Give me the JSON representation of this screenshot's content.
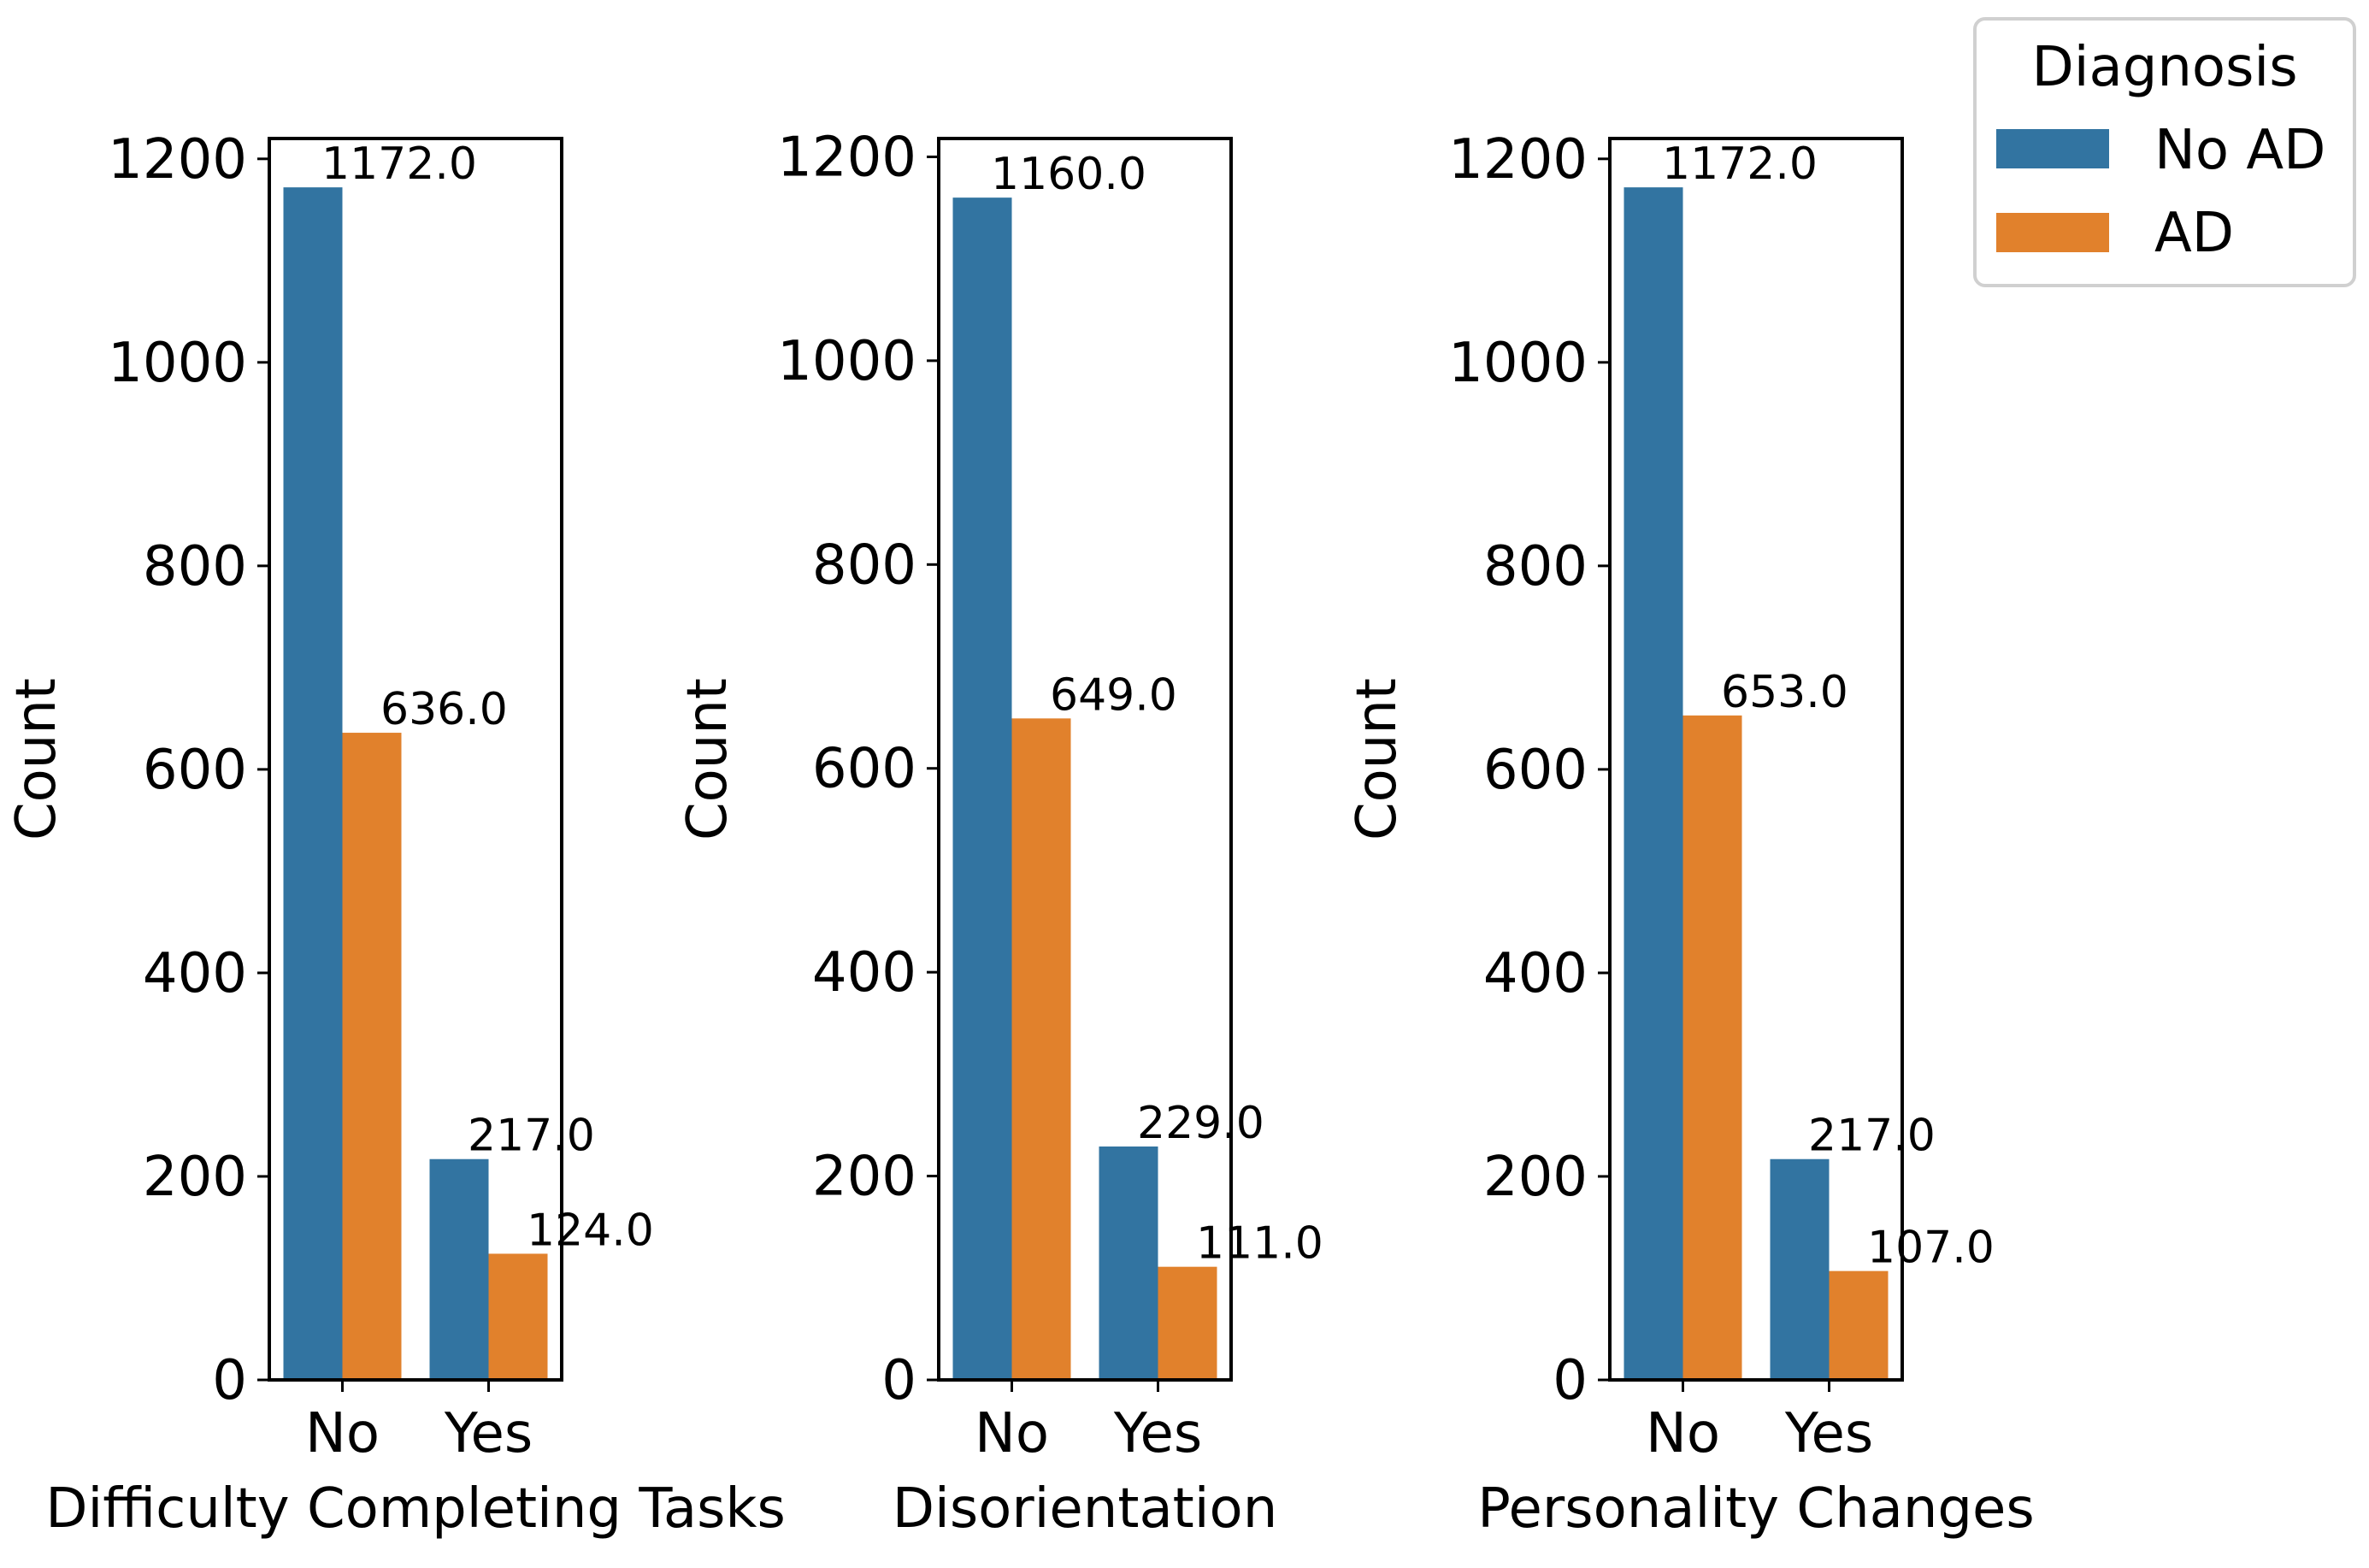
{
  "chart_data": [
    {
      "type": "bar",
      "xlabel": "Difficulty Completing Tasks",
      "ylabel": "Count",
      "categories": [
        "No",
        "Yes"
      ],
      "ylim": [
        0,
        1220
      ],
      "yticks": [
        0,
        200,
        400,
        600,
        800,
        1000,
        1200
      ],
      "series": [
        {
          "name": "No AD",
          "values": [
            1172,
            217
          ],
          "labels": [
            "1172.0",
            "217.0"
          ]
        },
        {
          "name": "AD",
          "values": [
            636,
            124
          ],
          "labels": [
            "636.0",
            "124.0"
          ]
        }
      ]
    },
    {
      "type": "bar",
      "xlabel": "Disorientation",
      "ylabel": "Count",
      "categories": [
        "No",
        "Yes"
      ],
      "ylim": [
        0,
        1218
      ],
      "yticks": [
        0,
        200,
        400,
        600,
        800,
        1000,
        1200
      ],
      "series": [
        {
          "name": "No AD",
          "values": [
            1160,
            229
          ],
          "labels": [
            "1160.0",
            "229.0"
          ]
        },
        {
          "name": "AD",
          "values": [
            649,
            111
          ],
          "labels": [
            "649.0",
            "111.0"
          ]
        }
      ]
    },
    {
      "type": "bar",
      "xlabel": "Personality Changes",
      "ylabel": "Count",
      "categories": [
        "No",
        "Yes"
      ],
      "ylim": [
        0,
        1220
      ],
      "yticks": [
        0,
        200,
        400,
        600,
        800,
        1000,
        1200
      ],
      "series": [
        {
          "name": "No AD",
          "values": [
            1172,
            217
          ],
          "labels": [
            "1172.0",
            "217.0"
          ]
        },
        {
          "name": "AD",
          "values": [
            653,
            107
          ],
          "labels": [
            "653.0",
            "107.0"
          ]
        }
      ]
    }
  ],
  "legend": {
    "title": "Diagnosis",
    "placement": "top-right",
    "entries": [
      {
        "name": "No AD",
        "color": "#3274a1"
      },
      {
        "name": "AD",
        "color": "#e1812c"
      }
    ]
  }
}
